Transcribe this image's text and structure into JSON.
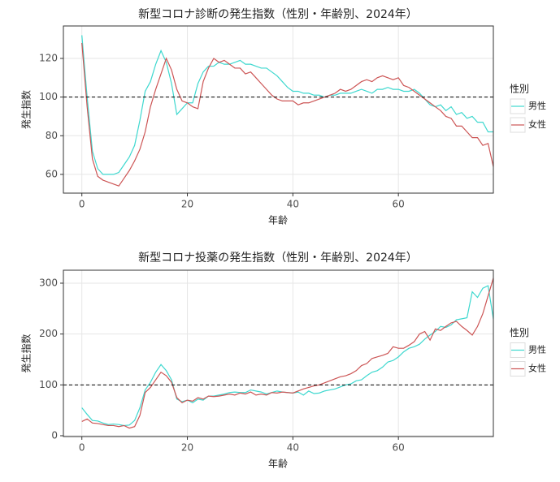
{
  "chart_data": [
    {
      "type": "line",
      "title": "新型コロナ診断の発生指数（性別・年齢別、2024年）",
      "x_label": "年齢",
      "y_label": "発生指数",
      "legend_title": "性別",
      "x": [
        0,
        1,
        2,
        3,
        4,
        5,
        6,
        7,
        8,
        9,
        10,
        11,
        12,
        13,
        14,
        15,
        16,
        17,
        18,
        19,
        20,
        21,
        22,
        23,
        24,
        25,
        26,
        27,
        28,
        29,
        30,
        31,
        32,
        33,
        34,
        35,
        36,
        37,
        38,
        39,
        40,
        41,
        42,
        43,
        44,
        45,
        46,
        47,
        48,
        49,
        50,
        51,
        52,
        53,
        54,
        55,
        56,
        57,
        58,
        59,
        60,
        61,
        62,
        63,
        64,
        65,
        66,
        67,
        68,
        69,
        70,
        71,
        72,
        73,
        74,
        75,
        76,
        77,
        78
      ],
      "series": [
        {
          "name": "男性",
          "color": "#3ed8cf",
          "values": [
            132,
            100,
            72,
            63,
            60,
            60,
            60,
            61,
            65,
            69,
            75,
            88,
            103,
            108,
            117,
            124,
            118,
            107,
            91,
            94,
            97,
            97,
            107,
            113,
            116,
            116,
            118,
            117,
            117,
            118,
            119,
            117,
            117,
            116,
            115,
            115,
            113,
            111,
            108,
            105,
            103,
            103,
            102,
            102,
            101,
            101,
            100,
            101,
            101,
            102,
            102,
            102,
            103,
            104,
            103,
            102,
            104,
            104,
            105,
            104,
            104,
            103,
            103,
            104,
            102,
            99,
            96,
            95,
            96,
            93,
            95,
            91,
            92,
            89,
            90,
            87,
            87,
            82,
            82
          ]
        },
        {
          "name": "女性",
          "color": "#cc5555",
          "values": [
            128,
            95,
            68,
            59,
            57,
            56,
            55,
            54,
            58,
            62,
            67,
            73,
            82,
            95,
            104,
            112,
            120,
            114,
            104,
            98,
            97,
            95,
            94,
            108,
            115,
            120,
            118,
            119,
            117,
            115,
            115,
            112,
            113,
            110,
            107,
            104,
            101,
            99,
            98,
            98,
            98,
            96,
            97,
            97,
            98,
            99,
            100,
            101,
            102,
            104,
            103,
            104,
            106,
            108,
            109,
            108,
            110,
            111,
            110,
            109,
            110,
            106,
            105,
            103,
            101,
            99,
            97,
            95,
            93,
            90,
            89,
            85,
            85,
            82,
            79,
            79,
            75,
            76,
            64
          ]
        }
      ],
      "xlim": [
        -3.5,
        78
      ],
      "xticks": [
        0,
        20,
        40,
        60
      ],
      "ylim": [
        50.3,
        136.8
      ],
      "yticks": [
        60,
        80,
        100,
        120
      ],
      "hline": 100,
      "grid": true
    },
    {
      "type": "line",
      "title": "新型コロナ投薬の発生指数（性別・年齢別、2024年）",
      "x_label": "年齢",
      "y_label": "発生指数",
      "legend_title": "性別",
      "x": [
        0,
        1,
        2,
        3,
        4,
        5,
        6,
        7,
        8,
        9,
        10,
        11,
        12,
        13,
        14,
        15,
        16,
        17,
        18,
        19,
        20,
        21,
        22,
        23,
        24,
        25,
        26,
        27,
        28,
        29,
        30,
        31,
        32,
        33,
        34,
        35,
        36,
        37,
        38,
        39,
        40,
        41,
        42,
        43,
        44,
        45,
        46,
        47,
        48,
        49,
        50,
        51,
        52,
        53,
        54,
        55,
        56,
        57,
        58,
        59,
        60,
        61,
        62,
        63,
        64,
        65,
        66,
        67,
        68,
        69,
        70,
        71,
        72,
        73,
        74,
        75,
        76,
        77,
        78
      ],
      "series": [
        {
          "name": "男性",
          "color": "#3ed8cf",
          "values": [
            55,
            42,
            30,
            29,
            25,
            22,
            23,
            22,
            20,
            21,
            30,
            55,
            90,
            105,
            125,
            140,
            128,
            110,
            72,
            67,
            70,
            65,
            72,
            70,
            78,
            78,
            80,
            82,
            85,
            86,
            85,
            85,
            90,
            88,
            86,
            82,
            85,
            88,
            86,
            85,
            84,
            86,
            80,
            88,
            83,
            84,
            88,
            90,
            92,
            96,
            100,
            102,
            108,
            110,
            118,
            125,
            128,
            135,
            145,
            148,
            155,
            165,
            172,
            175,
            180,
            190,
            198,
            205,
            215,
            213,
            218,
            228,
            230,
            232,
            283,
            272,
            290,
            295,
            230
          ]
        },
        {
          "name": "女性",
          "color": "#cc5555",
          "values": [
            28,
            33,
            25,
            24,
            22,
            20,
            20,
            18,
            20,
            15,
            18,
            40,
            85,
            95,
            110,
            125,
            118,
            105,
            75,
            65,
            70,
            68,
            75,
            72,
            78,
            77,
            78,
            80,
            82,
            80,
            84,
            82,
            86,
            80,
            82,
            80,
            85,
            84,
            86,
            85,
            84,
            88,
            92,
            95,
            98,
            100,
            104,
            108,
            112,
            116,
            118,
            122,
            128,
            138,
            142,
            152,
            155,
            158,
            162,
            175,
            172,
            172,
            178,
            185,
            200,
            205,
            188,
            210,
            207,
            215,
            222,
            225,
            215,
            207,
            198,
            215,
            240,
            275,
            310
          ]
        }
      ],
      "xlim": [
        -3.5,
        78
      ],
      "xticks": [
        0,
        20,
        40,
        60
      ],
      "ylim": [
        -1.6,
        325.5
      ],
      "yticks": [
        0,
        100,
        200,
        300
      ],
      "hline": 100,
      "grid": true
    }
  ]
}
